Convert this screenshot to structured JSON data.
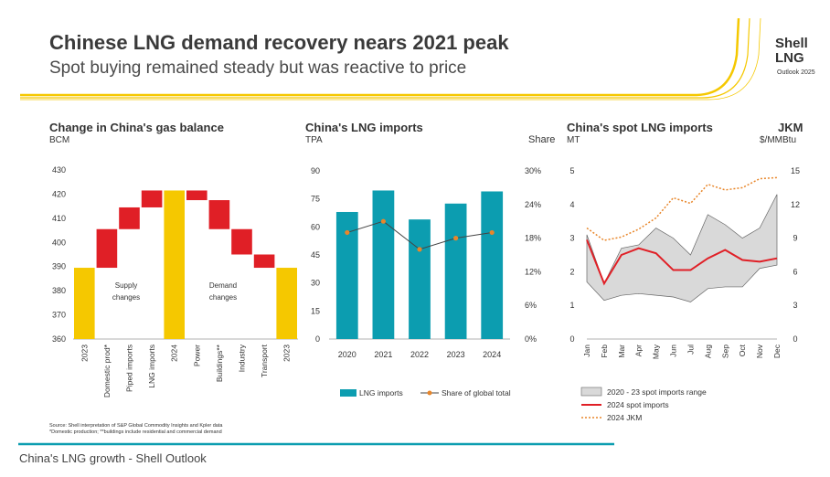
{
  "header": {
    "title": "Chinese LNG demand recovery nears 2021 peak",
    "subtitle": "Spot buying remained steady but was reactive to price",
    "brand_line1": "Shell",
    "brand_line2": "LNG",
    "brand_sub": "Outlook 2025"
  },
  "colors": {
    "accent_yellow": "#f5c800",
    "red": "#e01f26",
    "teal": "#0c9db0",
    "orange": "#e8862a",
    "range_gray": "#d9d9d9"
  },
  "footer": {
    "source": "Source: Shell interpretation of S&P Global Commodity Insights and Kpler data",
    "note": "*Domestic production; **buildings include residential and commercial demand",
    "caption": "China's LNG growth - Shell Outlook"
  },
  "chart_data": [
    {
      "type": "bar",
      "subtype": "waterfall",
      "title": "Change in China's gas balance",
      "ylabel": "BCM",
      "ylim": [
        360,
        430
      ],
      "yticks": [
        360,
        370,
        380,
        390,
        400,
        410,
        420,
        430
      ],
      "categories": [
        "2023",
        "Domestic prod*",
        "Piped imports",
        "LNG imports",
        "2024",
        "Power",
        "Buildings**",
        "Industry",
        "Transport",
        "2023"
      ],
      "bars": [
        {
          "label": "2023",
          "kind": "total",
          "from": 360,
          "to": 389.5
        },
        {
          "label": "Domestic prod*",
          "kind": "change",
          "from": 389.5,
          "to": 405.5
        },
        {
          "label": "Piped imports",
          "kind": "change",
          "from": 405.5,
          "to": 414.5
        },
        {
          "label": "LNG imports",
          "kind": "change",
          "from": 414.5,
          "to": 421.5
        },
        {
          "label": "2024",
          "kind": "total",
          "from": 360,
          "to": 421.5
        },
        {
          "label": "Power",
          "kind": "change",
          "from": 421.5,
          "to": 417.5
        },
        {
          "label": "Buildings**",
          "kind": "change",
          "from": 417.5,
          "to": 405.5
        },
        {
          "label": "Industry",
          "kind": "change",
          "from": 405.5,
          "to": 395
        },
        {
          "label": "Transport",
          "kind": "change",
          "from": 395,
          "to": 389.5
        },
        {
          "label": "2023",
          "kind": "total",
          "from": 360,
          "to": 389.5
        }
      ],
      "annotations": [
        {
          "text": "Supply",
          "text2": "changes"
        },
        {
          "text": "Demand",
          "text2": "changes"
        }
      ]
    },
    {
      "type": "bar",
      "title": "China's LNG imports",
      "ylabel": "TPA",
      "y2label": "Share",
      "categories": [
        "2020",
        "2021",
        "2022",
        "2023",
        "2024"
      ],
      "ylim": [
        0,
        90
      ],
      "yticks": [
        0,
        15,
        30,
        45,
        60,
        75,
        90
      ],
      "y2lim": [
        0,
        30
      ],
      "y2ticks": [
        "0%",
        "6%",
        "12%",
        "18%",
        "24%",
        "30%"
      ],
      "series": [
        {
          "name": "LNG imports",
          "kind": "bar",
          "values": [
            68,
            79.5,
            64,
            72.5,
            79
          ]
        },
        {
          "name": "Share of global total",
          "kind": "line",
          "axis": "y2",
          "values": [
            19,
            21,
            16,
            18,
            19
          ]
        }
      ]
    },
    {
      "type": "line",
      "title": "China's spot LNG imports",
      "ylabel": "MT",
      "y2title": "JKM",
      "y2label": "$/MMBtu",
      "categories": [
        "Jan",
        "Feb",
        "Mar",
        "Apr",
        "May",
        "Jun",
        "Jul",
        "Aug",
        "Sep",
        "Oct",
        "Nov",
        "Dec"
      ],
      "ylim": [
        0,
        5
      ],
      "yticks": [
        0,
        1,
        2,
        3,
        4,
        5
      ],
      "y2lim": [
        0,
        15
      ],
      "y2ticks": [
        0,
        3,
        6,
        9,
        12,
        15
      ],
      "series": [
        {
          "name": "2020 - 23 spot imports range",
          "kind": "range",
          "low": [
            1.7,
            1.15,
            1.3,
            1.35,
            1.3,
            1.25,
            1.1,
            1.5,
            1.55,
            1.55,
            2.1,
            2.2
          ],
          "high": [
            3.1,
            1.65,
            2.7,
            2.8,
            3.3,
            3.0,
            2.5,
            3.7,
            3.4,
            3.0,
            3.3,
            4.3
          ]
        },
        {
          "name": "2024 spot imports",
          "kind": "line",
          "values": [
            2.95,
            1.65,
            2.5,
            2.7,
            2.55,
            2.05,
            2.05,
            2.4,
            2.65,
            2.35,
            2.3,
            2.4
          ]
        },
        {
          "name": "2024 JKM",
          "kind": "dotted",
          "axis": "y2",
          "values": [
            9.9,
            8.8,
            9.1,
            9.8,
            10.8,
            12.6,
            12.1,
            13.8,
            13.3,
            13.5,
            14.3,
            14.4
          ]
        }
      ]
    }
  ]
}
